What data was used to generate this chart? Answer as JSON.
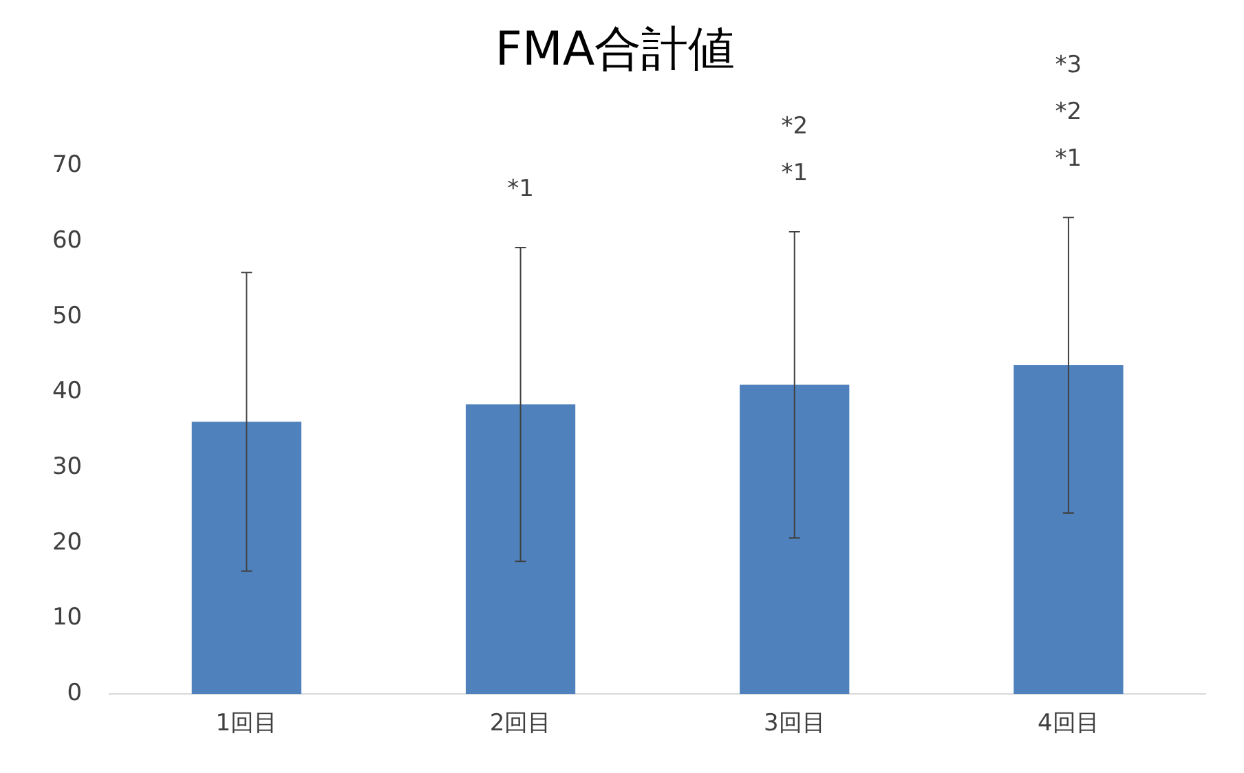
{
  "chart_data": {
    "type": "bar",
    "title": "FMA合計値",
    "categories": [
      "1回目",
      "2回目",
      "3回目",
      "4回目"
    ],
    "values": [
      36.1,
      38.4,
      41.0,
      43.6
    ],
    "errors": [
      19.8,
      20.8,
      20.3,
      19.6
    ],
    "color": "#4f81bd",
    "ylim": [
      0,
      70
    ],
    "yticks": [
      0,
      10,
      20,
      30,
      40,
      50,
      60,
      70
    ],
    "grid": false,
    "legend": false,
    "annotations": [
      "*1",
      "*2\n*1",
      "*3\n*2\n*1"
    ]
  }
}
